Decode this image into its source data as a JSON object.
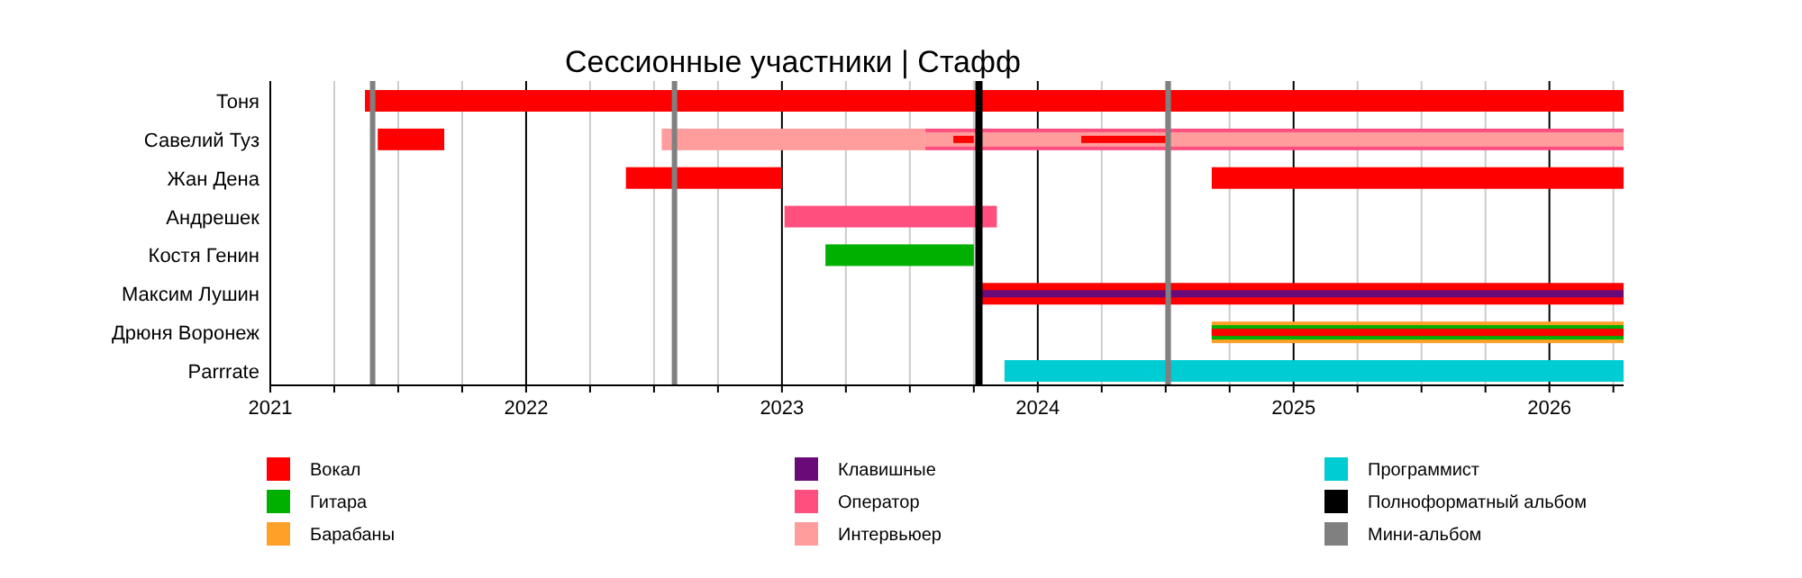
{
  "chart_data": {
    "type": "bar",
    "orientation": "horizontal",
    "title": "Сессионные участники | Стафф",
    "categories": [
      "Тоня",
      "Савелий Туз",
      "Жан Дена",
      "Андрешек",
      "Костя Генин",
      "Максим Лушин",
      "Дрюня Воронеж",
      "Parrrate"
    ],
    "series": [
      {
        "name": "Вокал",
        "color": "#ff0000",
        "values": [
          4.92,
          0.26,
          0.61,
          null,
          null,
          2.51,
          null,
          null
        ],
        "base": [
          2021.37,
          2021.42,
          2022.39,
          null,
          null,
          2023.78,
          null,
          null
        ]
      },
      {
        "name": "Гитара",
        "color": "#00b000",
        "values": [
          null,
          null,
          null,
          null,
          0.58,
          null,
          null,
          null
        ],
        "base": [
          null,
          null,
          null,
          null,
          2023.17,
          null,
          null,
          null
        ]
      },
      {
        "name": "Барабаны",
        "color": "#ffa028",
        "values": [
          null,
          null,
          null,
          null,
          null,
          null,
          1.61,
          null
        ],
        "base": [
          null,
          null,
          null,
          null,
          null,
          null,
          2024.68,
          null
        ]
      },
      {
        "name": "Клавишные",
        "color": "#6a0a78",
        "values": [
          null,
          null,
          null,
          null,
          null,
          2.51,
          null,
          null
        ],
        "base": [
          null,
          null,
          null,
          null,
          null,
          2023.78,
          null,
          null
        ]
      },
      {
        "name": "Оператор",
        "color": "#ff4f7f",
        "values": [
          null,
          2.73,
          null,
          0.83,
          null,
          null,
          null,
          null
        ],
        "base": [
          null,
          2023.56,
          null,
          2023.01,
          null,
          null,
          null,
          null
        ]
      },
      {
        "name": "Интервьюер",
        "color": "#ff9c9c",
        "values": [
          null,
          1.03,
          null,
          null,
          null,
          null,
          null,
          null
        ],
        "base": [
          null,
          2022.53,
          null,
          null,
          null,
          null,
          null,
          null
        ]
      },
      {
        "name": "Программист",
        "color": "#00ccd4",
        "values": [
          null,
          null,
          null,
          null,
          null,
          null,
          null,
          2.42
        ],
        "base": [
          null,
          null,
          null,
          null,
          null,
          null,
          null,
          2023.87
        ]
      },
      {
        "color": "#00b000",
        "values": [
          null,
          null,
          null,
          null,
          null,
          null,
          1.61,
          null
        ],
        "base": [
          null,
          null,
          null,
          null,
          null,
          null,
          2024.68,
          null
        ]
      },
      {
        "color": "#ff0000",
        "values": [
          null,
          null,
          1.61,
          null,
          null,
          null,
          1.61,
          null
        ],
        "base": [
          null,
          null,
          2024.68,
          null,
          null,
          null,
          2024.68,
          null
        ]
      },
      {
        "color": "#ff9c9c",
        "values": [
          null,
          2.73,
          null,
          null,
          null,
          null,
          null,
          null
        ],
        "base": [
          null,
          2023.56,
          null,
          null,
          null,
          null,
          null,
          null
        ]
      },
      {
        "color": "#ff0000",
        "values": [
          null,
          0.08,
          null,
          null,
          null,
          null,
          null,
          null
        ],
        "base": [
          null,
          2023.67,
          null,
          null,
          null,
          null,
          null,
          null
        ]
      },
      {
        "color": "#ff0000",
        "values": [
          null,
          0.33,
          null,
          null,
          null,
          null,
          null,
          null
        ],
        "base": [
          null,
          2024.17,
          null,
          null,
          null,
          null,
          null,
          null
        ]
      }
    ],
    "xlim": [
      2021,
      2026.29
    ],
    "xticks": [
      2021,
      {
        "value": 2021.25,
        "label": null
      },
      {
        "value": 2021.5,
        "label": null
      },
      {
        "value": 2021.75,
        "label": null
      },
      2022,
      {
        "value": 2022.25,
        "label": null
      },
      {
        "value": 2022.5,
        "label": null
      },
      {
        "value": 2022.75,
        "label": null
      },
      2023,
      {
        "value": 2023.25,
        "label": null
      },
      {
        "value": 2023.5,
        "label": null
      },
      {
        "value": 2023.75,
        "label": null
      },
      2024,
      {
        "value": 2024.25,
        "label": null
      },
      {
        "value": 2024.5,
        "label": null
      },
      {
        "value": 2024.75,
        "label": null
      },
      2025,
      {
        "value": 2025.25,
        "label": null
      },
      {
        "value": 2025.5,
        "label": null
      },
      {
        "value": 2025.75,
        "label": null
      },
      2026,
      {
        "value": 2026.25,
        "label": null
      }
    ],
    "grid": "x",
    "ref_lines": [
      {
        "axis": "x",
        "value": 2023.77,
        "label": "Полноформатный альбом",
        "color": "#000000"
      },
      {
        "axis": "x",
        "value": 2021.4,
        "label": "Мини-альбом",
        "color": "#808080"
      },
      {
        "axis": "x",
        "value": 2022.58,
        "color": "#808080"
      },
      {
        "axis": "x",
        "value": 2024.51,
        "color": "#808080"
      }
    ],
    "legend": "bottom"
  }
}
